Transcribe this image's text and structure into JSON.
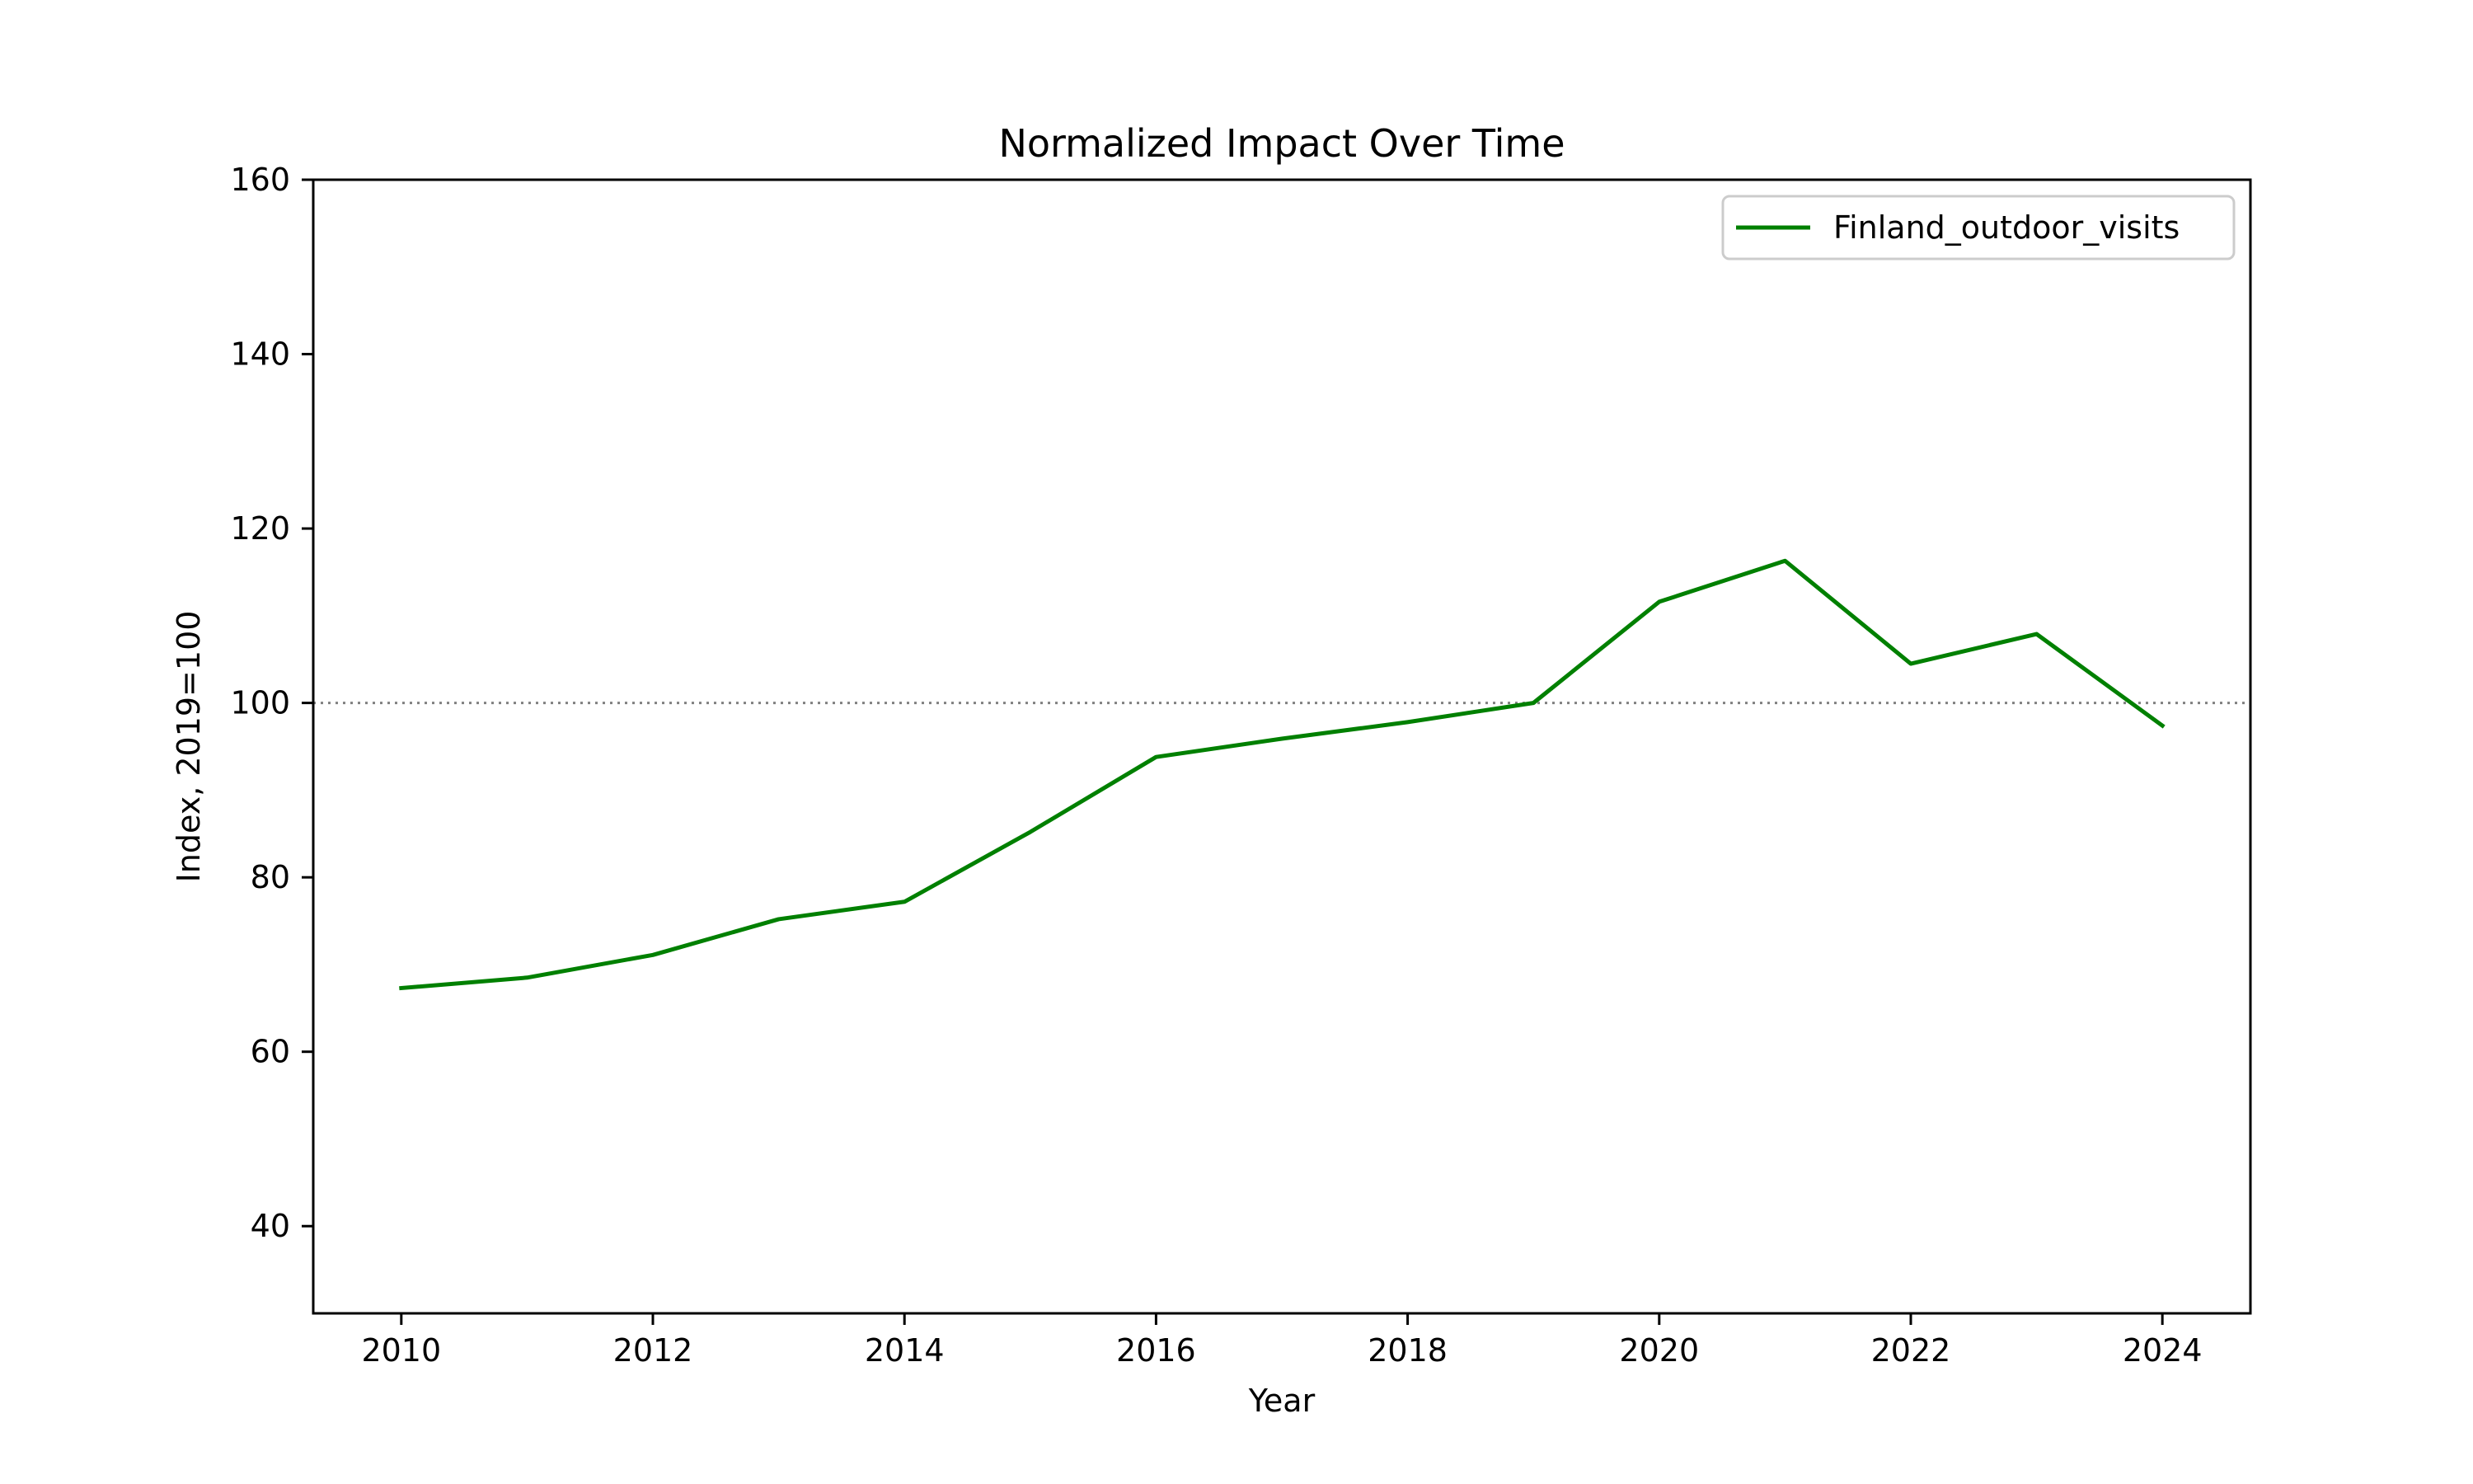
{
  "chart_data": {
    "type": "line",
    "title": "Normalized Impact Over Time",
    "xlabel": "Year",
    "ylabel": "Index, 2019=100",
    "xlim": [
      2009.3,
      2024.7
    ],
    "ylim": [
      30,
      160
    ],
    "x_ticks": [
      2010,
      2012,
      2014,
      2016,
      2018,
      2020,
      2022,
      2024
    ],
    "y_ticks": [
      40,
      60,
      80,
      100,
      120,
      140,
      160
    ],
    "grid": false,
    "legend": "upper right",
    "reference_line": {
      "y": 100,
      "style": "dotted",
      "color": "#808080"
    },
    "series": [
      {
        "name": "Finland_outdoor_visits",
        "color": "#008000",
        "x": [
          2010,
          2011,
          2012,
          2013,
          2014,
          2015,
          2016,
          2017,
          2018,
          2019,
          2020,
          2021,
          2022,
          2023,
          2024
        ],
        "y": [
          67.3,
          68.5,
          71.1,
          75.2,
          77.2,
          85.2,
          93.8,
          95.9,
          97.8,
          100.0,
          111.6,
          116.3,
          104.5,
          107.9,
          97.4
        ]
      }
    ]
  }
}
